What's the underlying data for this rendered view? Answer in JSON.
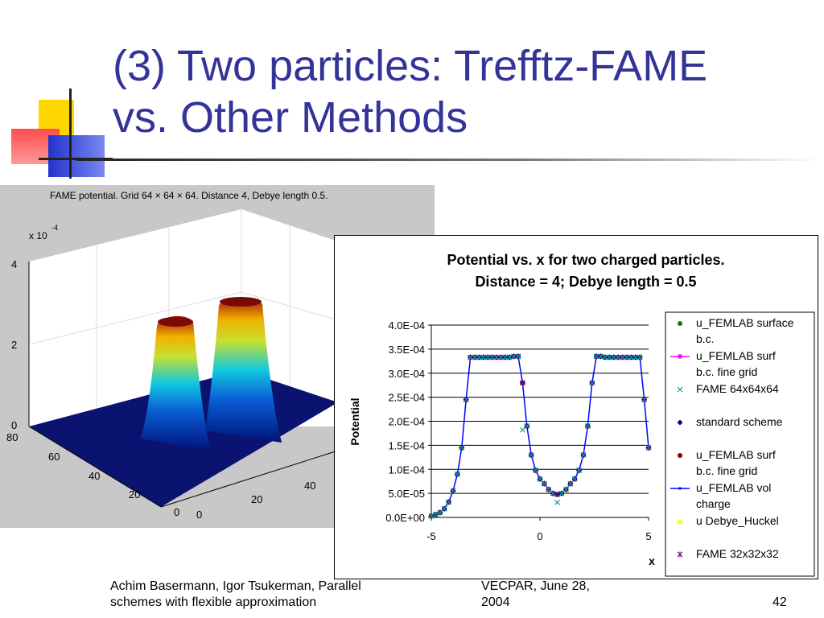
{
  "slide": {
    "title_line1": "(3) Two particles: Trefftz-FAME",
    "title_line2": "vs. Other Methods",
    "footer_left_line1": "Achim Basermann, Igor Tsukerman, Parallel",
    "footer_left_line2": "schemes with flexible approximation",
    "footer_mid_line1": "VECPAR, June 28,",
    "footer_mid_line2": "2004",
    "page_number": "42",
    "accent_color": "#333399"
  },
  "surface_plot": {
    "title": "FAME potential. Grid 64 × 64 × 64. Distance 4, Debye length 0.5.",
    "scale_label": "x 10",
    "scale_exponent": "-4",
    "z_ticks": [
      "4",
      "2",
      "0"
    ],
    "y_ticks": [
      "80",
      "60",
      "40",
      "20",
      "0"
    ],
    "x_ticks": [
      "0",
      "20",
      "40"
    ]
  },
  "chart_data": {
    "type": "line",
    "title_line1": "Potential vs. x for two charged particles.",
    "title_line2": "Distance = 4;  Debye length = 0.5",
    "xlabel": "x",
    "ylabel": "Potential",
    "xlim": [
      -5,
      5
    ],
    "ylim": [
      0,
      0.0004
    ],
    "x_ticks": [
      "-5",
      "0",
      "5"
    ],
    "y_ticks": [
      "0.0E+00",
      "5.0E-05",
      "1.0E-04",
      "1.5E-04",
      "2.0E-04",
      "2.5E-04",
      "3.0E-04",
      "3.5E-04",
      "4.0E-04"
    ],
    "grid": "horizontal",
    "legend_position": "right",
    "x": [
      -5.0,
      -4.8,
      -4.6,
      -4.4,
      -4.2,
      -4.0,
      -3.8,
      -3.6,
      -3.4,
      -3.2,
      -3.0,
      -2.8,
      -2.6,
      -2.4,
      -2.2,
      -2.0,
      -1.8,
      -1.6,
      -1.4,
      -1.2,
      -1.0,
      -0.8,
      -0.6,
      -0.4,
      -0.2,
      0.0,
      0.2,
      0.4,
      0.6,
      0.8,
      1.0,
      1.2,
      1.4,
      1.6,
      1.8,
      2.0,
      2.2,
      2.4,
      2.6,
      2.8,
      3.0,
      3.2,
      3.4,
      3.6,
      3.8,
      4.0,
      4.2,
      4.4,
      4.6,
      4.8,
      5.0
    ],
    "y": [
      3e-06,
      6e-06,
      1e-05,
      1.8e-05,
      3.2e-05,
      5.5e-05,
      9e-05,
      0.000145,
      0.000245,
      0.000333,
      0.000333,
      0.000333,
      0.000333,
      0.000333,
      0.000333,
      0.000333,
      0.000333,
      0.000333,
      0.000333,
      0.000335,
      0.000335,
      0.00028,
      0.00019,
      0.00013,
      9.8e-05,
      8e-05,
      7e-05,
      5.8e-05,
      5e-05,
      4.8e-05,
      5e-05,
      5.8e-05,
      7e-05,
      8e-05,
      9.8e-05,
      0.00013,
      0.00019,
      0.00028,
      0.000335,
      0.000335,
      0.000333,
      0.000333,
      0.000333,
      0.000333,
      0.000333,
      0.000333,
      0.000333,
      0.000333,
      0.000333,
      0.000245,
      0.000145
    ],
    "series": [
      {
        "name": "u_FEMLAB surface b.c.",
        "legend_line1": "u_FEMLAB surface",
        "legend_line2": "b.c.",
        "marker": "circle",
        "color": "#008000"
      },
      {
        "name": "u_FEMLAB surf b.c. fine grid",
        "legend_line1": "u_FEMLAB surf",
        "legend_line2": "b.c. fine grid",
        "marker": "square-line",
        "color": "#ff00ff"
      },
      {
        "name": "FAME 64x64x64",
        "legend_line1": "FAME 64x64x64",
        "legend_line2": "",
        "marker": "x",
        "color": "#00a0a0"
      },
      {
        "name": "standard scheme",
        "legend_line1": "standard scheme",
        "legend_line2": "",
        "marker": "diamond",
        "color": "#000080"
      },
      {
        "name": "u_FEMLAB surf b.c. fine grid",
        "legend_line1": "u_FEMLAB surf",
        "legend_line2": "b.c. fine grid",
        "marker": "circle",
        "color": "#800000"
      },
      {
        "name": "u_FEMLAB vol charge",
        "legend_line1": "u_FEMLAB vol",
        "legend_line2": "charge",
        "marker": "line",
        "color": "#0000ff"
      },
      {
        "name": "u Debye_Huckel",
        "legend_line1": "u Debye_Huckel",
        "legend_line2": "",
        "marker": "triangle",
        "color": "#ffff00"
      },
      {
        "name": "FAME 32x32x32",
        "legend_line1": "FAME 32x32x32",
        "legend_line2": "",
        "marker": "star",
        "color": "#800080"
      }
    ]
  }
}
